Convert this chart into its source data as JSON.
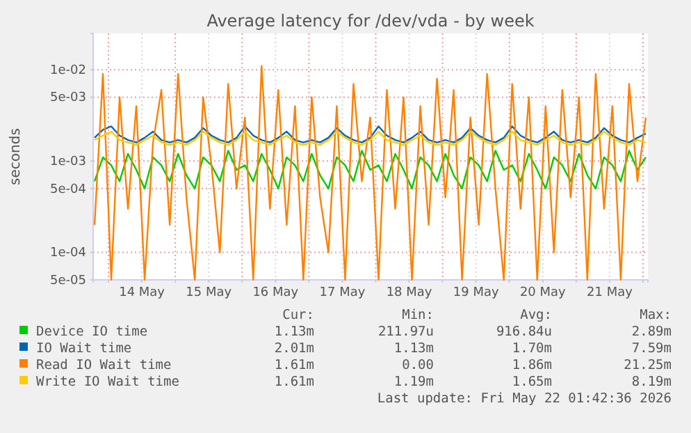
{
  "chart_data": {
    "type": "line",
    "title": "Average latency for /dev/vda - by week",
    "ylabel": "seconds",
    "log": true,
    "grid": true,
    "legend": "bottom",
    "marker": "none",
    "line_style": "solid",
    "ylim": [
      5e-05,
      0.025
    ],
    "yticks": [
      {
        "value": 5e-05,
        "label": "5e-05"
      },
      {
        "value": 0.0001,
        "label": "1e-04"
      },
      {
        "value": 0.0005,
        "label": "5e-04"
      },
      {
        "value": 0.001,
        "label": "1e-03"
      },
      {
        "value": 0.005,
        "label": "5e-03"
      },
      {
        "value": 0.01,
        "label": "1e-02"
      }
    ],
    "xlim": [
      "2026-05-13T18:30",
      "2026-05-22T01:45"
    ],
    "xticks": [
      {
        "value": "2026-05-14T00:00",
        "label": null
      },
      {
        "value": "2026-05-14T12:00",
        "label": "14 May"
      },
      {
        "value": "2026-05-15T00:00",
        "label": null
      },
      {
        "value": "2026-05-15T12:00",
        "label": "15 May"
      },
      {
        "value": "2026-05-16T00:00",
        "label": null
      },
      {
        "value": "2026-05-16T12:00",
        "label": "16 May"
      },
      {
        "value": "2026-05-17T00:00",
        "label": null
      },
      {
        "value": "2026-05-17T12:00",
        "label": "17 May"
      },
      {
        "value": "2026-05-18T00:00",
        "label": null
      },
      {
        "value": "2026-05-18T12:00",
        "label": "18 May"
      },
      {
        "value": "2026-05-19T00:00",
        "label": null
      },
      {
        "value": "2026-05-19T12:00",
        "label": "19 May"
      },
      {
        "value": "2026-05-20T00:00",
        "label": null
      },
      {
        "value": "2026-05-20T12:00",
        "label": "20 May"
      },
      {
        "value": "2026-05-21T00:00",
        "label": null
      },
      {
        "value": "2026-05-21T12:00",
        "label": "21 May"
      },
      {
        "value": "2026-05-22T00:00",
        "label": null
      }
    ],
    "x": [
      "2026-05-13T19:00",
      "2026-05-13T22:00",
      "2026-05-14T01:00",
      "2026-05-14T04:00",
      "2026-05-14T07:00",
      "2026-05-14T10:00",
      "2026-05-14T13:00",
      "2026-05-14T16:00",
      "2026-05-14T19:00",
      "2026-05-14T22:00",
      "2026-05-15T01:00",
      "2026-05-15T04:00",
      "2026-05-15T07:00",
      "2026-05-15T10:00",
      "2026-05-15T13:00",
      "2026-05-15T16:00",
      "2026-05-15T19:00",
      "2026-05-15T22:00",
      "2026-05-16T01:00",
      "2026-05-16T04:00",
      "2026-05-16T07:00",
      "2026-05-16T10:00",
      "2026-05-16T13:00",
      "2026-05-16T16:00",
      "2026-05-16T19:00",
      "2026-05-16T22:00",
      "2026-05-17T01:00",
      "2026-05-17T04:00",
      "2026-05-17T07:00",
      "2026-05-17T10:00",
      "2026-05-17T13:00",
      "2026-05-17T16:00",
      "2026-05-17T19:00",
      "2026-05-17T22:00",
      "2026-05-18T01:00",
      "2026-05-18T04:00",
      "2026-05-18T07:00",
      "2026-05-18T10:00",
      "2026-05-18T13:00",
      "2026-05-18T16:00",
      "2026-05-18T19:00",
      "2026-05-18T22:00",
      "2026-05-19T01:00",
      "2026-05-19T04:00",
      "2026-05-19T07:00",
      "2026-05-19T10:00",
      "2026-05-19T13:00",
      "2026-05-19T16:00",
      "2026-05-19T19:00",
      "2026-05-19T22:00",
      "2026-05-20T01:00",
      "2026-05-20T04:00",
      "2026-05-20T07:00",
      "2026-05-20T10:00",
      "2026-05-20T13:00",
      "2026-05-20T16:00",
      "2026-05-20T19:00",
      "2026-05-20T22:00",
      "2026-05-21T01:00",
      "2026-05-21T04:00",
      "2026-05-21T07:00",
      "2026-05-21T10:00",
      "2026-05-21T13:00",
      "2026-05-21T16:00",
      "2026-05-21T19:00",
      "2026-05-21T22:00",
      "2026-05-22T01:00"
    ],
    "series": [
      {
        "name": "Device IO time",
        "color": "#00cc00",
        "values": [
          0.0006,
          0.0011,
          0.0009,
          0.0006,
          0.0012,
          0.0008,
          0.0005,
          0.0011,
          0.0009,
          0.0006,
          0.0012,
          0.0007,
          0.0005,
          0.0011,
          0.0009,
          0.0006,
          0.0013,
          0.0008,
          0.0009,
          0.0006,
          0.0012,
          0.0008,
          0.0005,
          0.0011,
          0.0009,
          0.0006,
          0.0012,
          0.0007,
          0.0005,
          0.0011,
          0.0009,
          0.0006,
          0.0013,
          0.0008,
          0.0009,
          0.0006,
          0.0012,
          0.0008,
          0.0005,
          0.0011,
          0.0009,
          0.0006,
          0.0012,
          0.0007,
          0.0005,
          0.0011,
          0.0009,
          0.0006,
          0.0013,
          0.0008,
          0.0009,
          0.0006,
          0.0012,
          0.0008,
          0.0005,
          0.0011,
          0.0009,
          0.0006,
          0.0012,
          0.0007,
          0.0005,
          0.0011,
          0.0009,
          0.0006,
          0.0013,
          0.0008,
          0.0011
        ]
      },
      {
        "name": "IO Wait time",
        "color": "#0066b3",
        "values": [
          0.0018,
          0.0022,
          0.0024,
          0.0019,
          0.0017,
          0.0016,
          0.0018,
          0.0021,
          0.0017,
          0.0016,
          0.0017,
          0.0016,
          0.0018,
          0.0023,
          0.0019,
          0.0017,
          0.0016,
          0.0018,
          0.0024,
          0.0019,
          0.0017,
          0.0016,
          0.0018,
          0.0021,
          0.0017,
          0.0016,
          0.0017,
          0.0016,
          0.0018,
          0.0023,
          0.0019,
          0.0017,
          0.0016,
          0.0018,
          0.0024,
          0.0019,
          0.0017,
          0.0016,
          0.0018,
          0.0021,
          0.0017,
          0.0016,
          0.0017,
          0.0016,
          0.0018,
          0.0023,
          0.0019,
          0.0017,
          0.0016,
          0.0018,
          0.0024,
          0.0019,
          0.0017,
          0.0016,
          0.0018,
          0.0021,
          0.0017,
          0.0016,
          0.0017,
          0.0016,
          0.0018,
          0.0023,
          0.0019,
          0.0017,
          0.0016,
          0.0018,
          0.002
        ]
      },
      {
        "name": "Read IO Wait time",
        "color": "#ff8000",
        "values": [
          0.0002,
          0.009,
          5e-05,
          0.005,
          0.0003,
          0.004,
          5e-05,
          0.0016,
          0.006,
          0.0002,
          0.009,
          0.0004,
          5e-05,
          0.005,
          0.0009,
          0.0001,
          0.007,
          0.0005,
          0.003,
          5e-05,
          0.011,
          0.0003,
          0.006,
          0.0002,
          0.004,
          5e-05,
          0.005,
          0.0004,
          0.0001,
          0.004,
          5e-05,
          0.007,
          0.0006,
          0.003,
          5e-05,
          0.006,
          0.0003,
          0.005,
          5e-05,
          0.004,
          0.0002,
          0.008,
          0.0004,
          0.006,
          5e-05,
          0.003,
          0.0002,
          0.009,
          0.0005,
          5e-05,
          0.007,
          0.0003,
          0.005,
          5e-05,
          0.004,
          0.0001,
          0.006,
          0.0004,
          0.005,
          5e-05,
          0.009,
          0.0003,
          0.004,
          5e-05,
          0.007,
          0.0006,
          0.003
        ]
      },
      {
        "name": "Write IO Wait time",
        "color": "#ffcc00",
        "values": [
          0.0017,
          0.0019,
          0.0021,
          0.0017,
          0.0016,
          0.0015,
          0.0017,
          0.0019,
          0.0016,
          0.0015,
          0.0016,
          0.0015,
          0.0017,
          0.0021,
          0.0018,
          0.0016,
          0.0015,
          0.0017,
          0.0021,
          0.0017,
          0.0016,
          0.0015,
          0.0017,
          0.0019,
          0.0016,
          0.0015,
          0.0016,
          0.0015,
          0.0017,
          0.0021,
          0.0018,
          0.0016,
          0.0015,
          0.0017,
          0.0021,
          0.0017,
          0.0016,
          0.0015,
          0.0017,
          0.0019,
          0.0016,
          0.0015,
          0.0016,
          0.0015,
          0.0017,
          0.0021,
          0.0018,
          0.0016,
          0.0015,
          0.0017,
          0.0021,
          0.0017,
          0.0016,
          0.0015,
          0.0017,
          0.0019,
          0.0016,
          0.0015,
          0.0016,
          0.0015,
          0.0017,
          0.0021,
          0.0018,
          0.0016,
          0.0015,
          0.0017,
          0.0016
        ]
      }
    ],
    "annotations": [
      "Cur:",
      "Min:",
      "Avg:",
      "Max:",
      "1.13m",
      "211.97u",
      "916.84u",
      "2.89m",
      "2.01m",
      "1.13m",
      "1.70m",
      "7.59m",
      "1.61m",
      "0.00",
      "1.86m",
      "21.25m",
      "1.61m",
      "1.19m",
      "1.65m",
      "8.19m",
      "Last update: Fri May 22 01:42:36 2026"
    ]
  }
}
